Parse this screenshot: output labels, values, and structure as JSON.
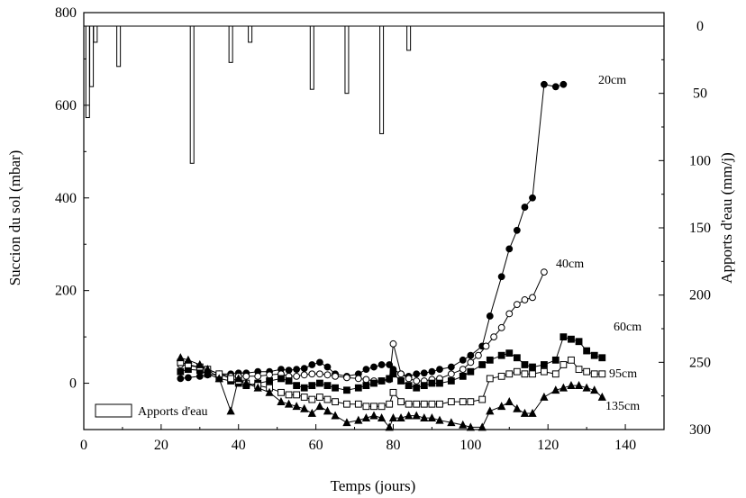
{
  "chart_data": {
    "type": "line",
    "xlabel": "Temps (jours)",
    "ylabel": "Succion du sol (mbar)",
    "y2label": "Apports d'eau (mm/j)",
    "xlim": [
      0,
      150
    ],
    "ylim": [
      -100,
      800
    ],
    "y2lim": [
      0,
      300
    ],
    "y2_inverted": true,
    "x_ticks": [
      0,
      20,
      40,
      60,
      80,
      100,
      120,
      140
    ],
    "y_ticks": [
      0,
      200,
      400,
      600,
      800
    ],
    "y2_ticks": [
      0,
      50,
      100,
      150,
      200,
      250,
      300
    ],
    "grid": false,
    "legend": {
      "position": "bottom-left",
      "label": "Apports d'eau"
    },
    "bars": {
      "name": "Apports d'eau",
      "x": [
        1,
        2,
        3,
        9,
        28,
        38,
        43,
        59,
        68,
        77,
        84
      ],
      "values": [
        68,
        45,
        12,
        30,
        102,
        27,
        12,
        47,
        50,
        80,
        18
      ]
    },
    "series": [
      {
        "name": "20cm",
        "marker": "filled-circle",
        "x": [
          25,
          27,
          30,
          32,
          35,
          38,
          40,
          42,
          45,
          48,
          51,
          53,
          55,
          57,
          59,
          61,
          63,
          65,
          68,
          71,
          73,
          75,
          77,
          79,
          80,
          82,
          84,
          86,
          88,
          90,
          92,
          95,
          98,
          100,
          103,
          105,
          108,
          110,
          112,
          114,
          116,
          119,
          122,
          124
        ],
        "values": [
          10,
          12,
          15,
          18,
          20,
          20,
          22,
          22,
          25,
          25,
          30,
          28,
          30,
          32,
          40,
          45,
          35,
          20,
          15,
          20,
          30,
          35,
          40,
          40,
          30,
          20,
          15,
          20,
          22,
          25,
          30,
          35,
          50,
          60,
          80,
          145,
          230,
          290,
          330,
          380,
          400,
          645,
          640,
          645
        ]
      },
      {
        "name": "40cm",
        "marker": "open-circle",
        "x": [
          25,
          27,
          30,
          32,
          35,
          38,
          40,
          42,
          45,
          48,
          51,
          53,
          55,
          57,
          59,
          61,
          63,
          65,
          68,
          71,
          73,
          75,
          77,
          79,
          80,
          82,
          84,
          86,
          88,
          90,
          92,
          95,
          98,
          100,
          102,
          104,
          106,
          108,
          110,
          112,
          114,
          116,
          119
        ],
        "values": [
          40,
          38,
          35,
          30,
          20,
          15,
          15,
          15,
          15,
          18,
          20,
          15,
          15,
          18,
          20,
          20,
          18,
          15,
          12,
          10,
          8,
          5,
          5,
          8,
          85,
          20,
          10,
          5,
          5,
          8,
          10,
          20,
          30,
          45,
          60,
          80,
          100,
          120,
          150,
          170,
          180,
          185,
          240
        ]
      },
      {
        "name": "60cm",
        "marker": "filled-square",
        "x": [
          25,
          27,
          30,
          32,
          35,
          38,
          40,
          42,
          45,
          48,
          51,
          53,
          55,
          57,
          59,
          61,
          63,
          65,
          68,
          71,
          73,
          75,
          77,
          79,
          80,
          82,
          84,
          86,
          88,
          90,
          92,
          95,
          98,
          100,
          103,
          105,
          108,
          110,
          112,
          114,
          116,
          119,
          122,
          124,
          126,
          128,
          130,
          132,
          134
        ],
        "values": [
          25,
          30,
          28,
          20,
          10,
          5,
          0,
          -5,
          0,
          5,
          10,
          5,
          -5,
          -10,
          -5,
          0,
          -5,
          -10,
          -15,
          -10,
          -5,
          0,
          5,
          10,
          20,
          5,
          -5,
          -10,
          -5,
          0,
          0,
          5,
          15,
          25,
          40,
          50,
          60,
          65,
          55,
          40,
          35,
          40,
          50,
          100,
          95,
          90,
          70,
          60,
          55
        ]
      },
      {
        "name": "95cm",
        "marker": "open-square",
        "x": [
          25,
          27,
          30,
          32,
          35,
          38,
          40,
          42,
          45,
          48,
          51,
          53,
          55,
          57,
          59,
          61,
          63,
          65,
          68,
          71,
          73,
          75,
          77,
          79,
          80,
          82,
          84,
          86,
          88,
          90,
          92,
          95,
          98,
          100,
          103,
          105,
          108,
          110,
          112,
          114,
          116,
          119,
          122,
          124,
          126,
          128,
          130,
          132,
          134
        ],
        "values": [
          45,
          40,
          35,
          30,
          20,
          10,
          5,
          0,
          -5,
          -10,
          -20,
          -25,
          -25,
          -30,
          -35,
          -30,
          -35,
          -40,
          -45,
          -45,
          -50,
          -50,
          -50,
          -45,
          -20,
          -40,
          -45,
          -45,
          -45,
          -45,
          -45,
          -40,
          -40,
          -40,
          -35,
          10,
          15,
          20,
          25,
          20,
          20,
          25,
          20,
          40,
          50,
          30,
          25,
          20,
          20
        ]
      },
      {
        "name": "135cm",
        "marker": "filled-triangle",
        "x": [
          25,
          27,
          30,
          32,
          35,
          38,
          40,
          42,
          45,
          48,
          51,
          53,
          55,
          57,
          59,
          61,
          63,
          65,
          68,
          71,
          73,
          75,
          77,
          79,
          80,
          82,
          84,
          86,
          88,
          90,
          92,
          95,
          98,
          100,
          103,
          105,
          108,
          110,
          112,
          114,
          116,
          119,
          122,
          124,
          126,
          128,
          130,
          132,
          134
        ],
        "values": [
          55,
          50,
          40,
          30,
          10,
          -60,
          10,
          0,
          -10,
          -20,
          -40,
          -45,
          -50,
          -55,
          -65,
          -50,
          -60,
          -70,
          -85,
          -80,
          -75,
          -70,
          -75,
          -95,
          -75,
          -75,
          -70,
          -70,
          -75,
          -75,
          -80,
          -85,
          -90,
          -95,
          -95,
          -60,
          -50,
          -40,
          -55,
          -65,
          -65,
          -30,
          -15,
          -10,
          -5,
          -5,
          -10,
          -15,
          -30
        ]
      }
    ]
  }
}
